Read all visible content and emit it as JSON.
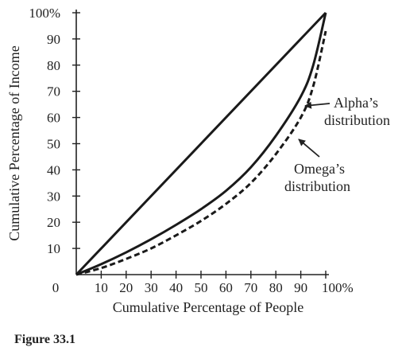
{
  "chart_data": {
    "type": "line",
    "xlabel": "Cumulative Percentage of People",
    "ylabel": "Cumulative Percentage of Income",
    "xlim": [
      0,
      100
    ],
    "ylim": [
      0,
      100
    ],
    "x_ticks": [
      "10",
      "20",
      "30",
      "40",
      "50",
      "60",
      "70",
      "80",
      "90",
      "100%"
    ],
    "y_ticks": [
      "10",
      "20",
      "30",
      "40",
      "50",
      "60",
      "70",
      "80",
      "90",
      "100%"
    ],
    "origin_label": "0",
    "grid": false,
    "series": [
      {
        "style": "solid",
        "x": [
          0,
          100
        ],
        "y": [
          0,
          100
        ]
      },
      {
        "style": "solid",
        "x": [
          0,
          10,
          20,
          30,
          40,
          50,
          60,
          70,
          80,
          90,
          95,
          100
        ],
        "y": [
          0,
          4,
          8.5,
          13.5,
          19,
          25,
          32,
          41,
          53,
          68,
          80,
          100
        ]
      },
      {
        "style": "dashed",
        "x": [
          0,
          10,
          20,
          30,
          40,
          50,
          60,
          70,
          80,
          90,
          95,
          100
        ],
        "y": [
          0,
          2.5,
          6,
          10,
          15,
          20.5,
          27,
          35,
          46,
          60,
          72,
          93
        ]
      }
    ],
    "annotations": [
      {
        "lines": [
          "Alpha’s",
          "distribution"
        ],
        "points_to": {
          "x": 91,
          "y": 70
        }
      },
      {
        "lines": [
          "Omega’s",
          "distribution"
        ],
        "points_to": {
          "x": 87,
          "y": 54
        }
      }
    ]
  },
  "caption": "Figure 33.1"
}
